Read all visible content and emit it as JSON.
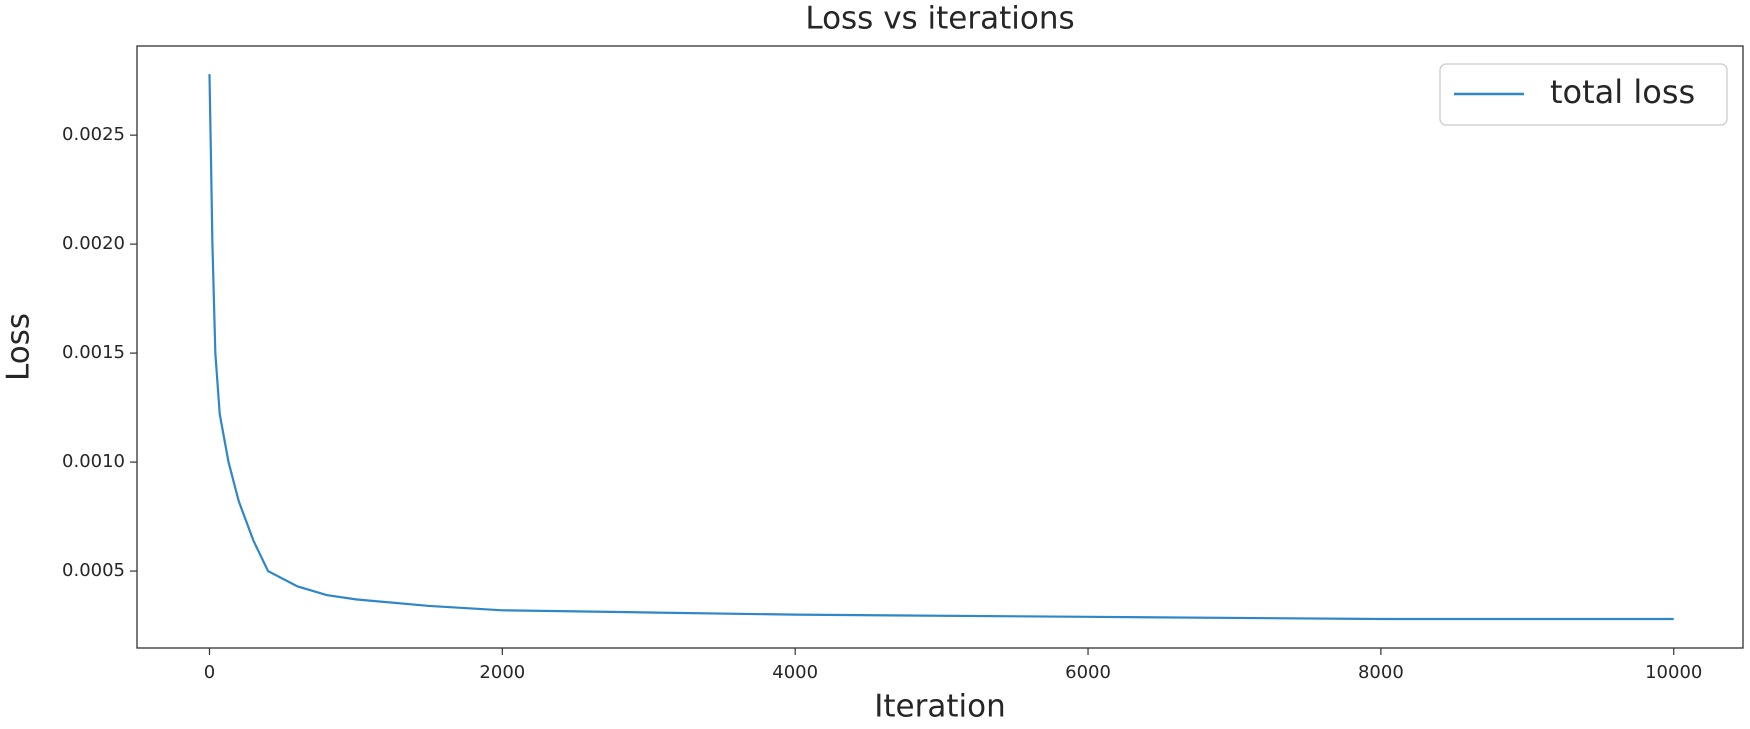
{
  "chart_data": {
    "type": "line",
    "title": "Loss vs iterations",
    "x_label": "Iteration",
    "y_label": "Loss",
    "x": [
      0,
      10,
      20,
      40,
      70,
      130,
      200,
      300,
      400,
      600,
      800,
      1000,
      1500,
      2000,
      3000,
      4000,
      6000,
      8000,
      10000
    ],
    "series": [
      {
        "name": "total loss",
        "color": "#2f86c8",
        "values": [
          0.00278,
          0.0024,
          0.002,
          0.0015,
          0.00122,
          0.001,
          0.00082,
          0.00064,
          0.0005,
          0.00043,
          0.00039,
          0.00037,
          0.00034,
          0.00032,
          0.00031,
          0.0003,
          0.00029,
          0.00028,
          0.00028
        ]
      }
    ],
    "xlim": [
      -495,
      10473
    ],
    "ylim": [
      0.000147,
      0.002909
    ],
    "xticks": [
      0,
      2000,
      4000,
      6000,
      8000,
      10000
    ],
    "yticks": [
      0.0005,
      {
        "value": 0.001,
        "label": "0.0010"
      },
      0.0015,
      {
        "value": 0.002,
        "label": "0.0020"
      },
      0.0025
    ],
    "legend": "upper right",
    "grid": false
  }
}
